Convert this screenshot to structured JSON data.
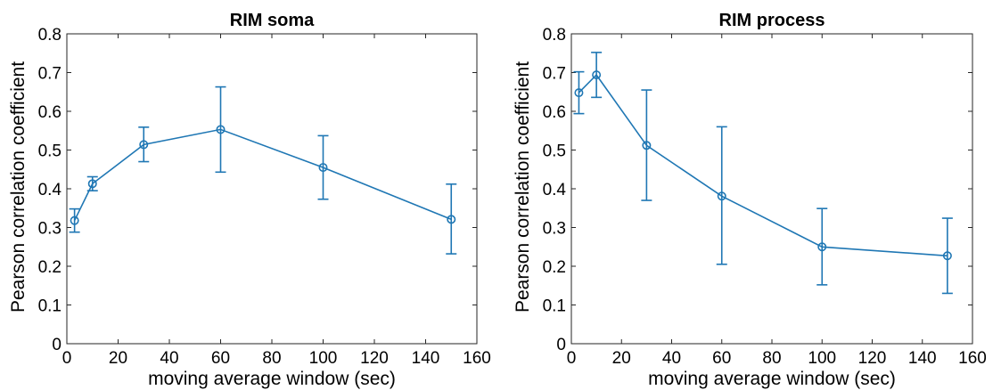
{
  "chart_data": [
    {
      "type": "line",
      "title": "RIM soma",
      "xlabel": "moving average window (sec)",
      "ylabel": "Pearson correlation coefficient",
      "xlim": [
        0,
        160
      ],
      "ylim": [
        0,
        0.8
      ],
      "xticks": [
        "0",
        "20",
        "40",
        "60",
        "80",
        "100",
        "120",
        "140",
        "160"
      ],
      "yticks": [
        "0",
        "0.1",
        "0.2",
        "0.3",
        "0.4",
        "0.5",
        "0.6",
        "0.7",
        "0.8"
      ],
      "grid": false,
      "marker": "circle",
      "error_bars": true,
      "color": "#1f77b4",
      "series": [
        {
          "x": [
            3,
            10,
            30,
            60,
            100,
            150
          ],
          "y": [
            0.318,
            0.413,
            0.514,
            0.553,
            0.455,
            0.321
          ],
          "err_low": [
            0.288,
            0.395,
            0.47,
            0.443,
            0.373,
            0.232
          ],
          "err_high": [
            0.348,
            0.431,
            0.559,
            0.663,
            0.537,
            0.412
          ]
        }
      ]
    },
    {
      "type": "line",
      "title": "RIM process",
      "xlabel": "moving average window (sec)",
      "ylabel": "Pearson correlation coefficient",
      "xlim": [
        0,
        160
      ],
      "ylim": [
        0,
        0.8
      ],
      "xticks": [
        "0",
        "20",
        "40",
        "60",
        "80",
        "100",
        "120",
        "140",
        "160"
      ],
      "yticks": [
        "0",
        "0.1",
        "0.2",
        "0.3",
        "0.4",
        "0.5",
        "0.6",
        "0.7",
        "0.8"
      ],
      "grid": false,
      "marker": "circle",
      "error_bars": true,
      "color": "#1f77b4",
      "series": [
        {
          "x": [
            3,
            10,
            30,
            60,
            100,
            150
          ],
          "y": [
            0.648,
            0.694,
            0.512,
            0.381,
            0.25,
            0.227
          ],
          "err_low": [
            0.594,
            0.636,
            0.37,
            0.205,
            0.152,
            0.13
          ],
          "err_high": [
            0.702,
            0.752,
            0.655,
            0.56,
            0.349,
            0.324
          ]
        }
      ]
    }
  ]
}
